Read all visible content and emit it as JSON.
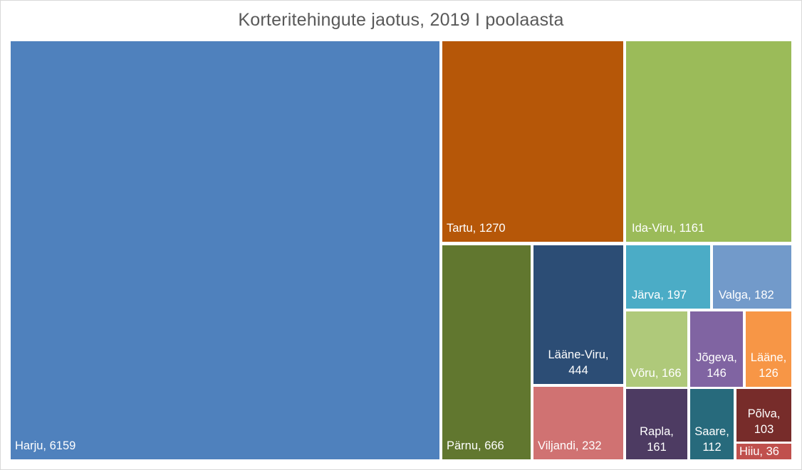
{
  "chart_data": {
    "type": "treemap",
    "title": "Korteritehingute jaotus, 2019 I poolaasta",
    "items": [
      {
        "name": "Harju",
        "value": 6159,
        "label": "Harju, 6159",
        "color": "#4f81bd"
      },
      {
        "name": "Tartu",
        "value": 1270,
        "label": "Tartu, 1270",
        "color": "#b65708"
      },
      {
        "name": "Ida-Viru",
        "value": 1161,
        "label": "Ida-Viru, 1161",
        "color": "#9bbb59"
      },
      {
        "name": "Pärnu",
        "value": 666,
        "label": "Pärnu, 666",
        "color": "#61772f"
      },
      {
        "name": "Lääne-Viru",
        "value": 444,
        "label": [
          "Lääne-Viru,",
          "444"
        ],
        "color": "#2c4d75"
      },
      {
        "name": "Viljandi",
        "value": 232,
        "label": "Viljandi, 232",
        "color": "#d07272"
      },
      {
        "name": "Järva",
        "value": 197,
        "label": "Järva, 197",
        "color": "#4bacc6"
      },
      {
        "name": "Valga",
        "value": 182,
        "label": "Valga, 182",
        "color": "#729aca"
      },
      {
        "name": "Võru",
        "value": 166,
        "label": "Võru, 166",
        "color": "#afc97a"
      },
      {
        "name": "Jõgeva",
        "value": 146,
        "label": [
          "Jõgeva,",
          "146"
        ],
        "color": "#8064a2"
      },
      {
        "name": "Lääne",
        "value": 126,
        "label": [
          "Lääne,",
          "126"
        ],
        "color": "#f79646"
      },
      {
        "name": "Rapla",
        "value": 161,
        "label": [
          "Rapla,",
          "161"
        ],
        "color": "#4d3b62"
      },
      {
        "name": "Saare",
        "value": 112,
        "label": [
          "Saare,",
          "112"
        ],
        "color": "#276a7c"
      },
      {
        "name": "Põlva",
        "value": 103,
        "label": [
          "Põlva,",
          "103"
        ],
        "color": "#772c2a"
      },
      {
        "name": "Hiiu",
        "value": 36,
        "label": "Hiiu, 36",
        "color": "#c0504d"
      }
    ]
  }
}
